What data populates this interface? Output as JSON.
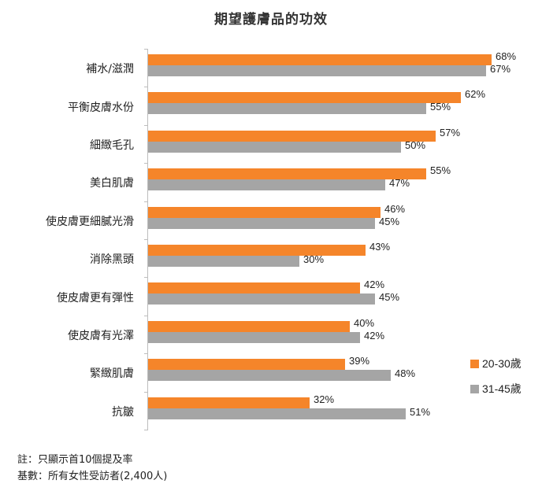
{
  "chart_data": {
    "type": "bar",
    "orientation": "horizontal",
    "title": "期望護膚品的功效",
    "categories": [
      "補水/滋潤",
      "平衡皮膚水份",
      "細緻毛孔",
      "美白肌膚",
      "使皮膚更細膩光滑",
      "消除黑頭",
      "使皮膚更有彈性",
      "使皮膚有光澤",
      "緊緻肌膚",
      "抗皺"
    ],
    "series": [
      {
        "name": "20-30歲",
        "color": "#f5852a",
        "values": [
          68,
          62,
          57,
          55,
          46,
          43,
          42,
          40,
          39,
          32
        ]
      },
      {
        "name": "31-45歲",
        "color": "#a5a5a5",
        "values": [
          67,
          55,
          50,
          47,
          45,
          30,
          45,
          42,
          48,
          51
        ]
      }
    ],
    "value_suffix": "%",
    "xlabel": "",
    "ylabel": "",
    "xlim": [
      0,
      70
    ],
    "grid": false,
    "legend_position": "right-bottom"
  },
  "notes": {
    "note": "註：只顯示首10個提及率",
    "base": "基數：所有女性受訪者(2,400人)"
  }
}
